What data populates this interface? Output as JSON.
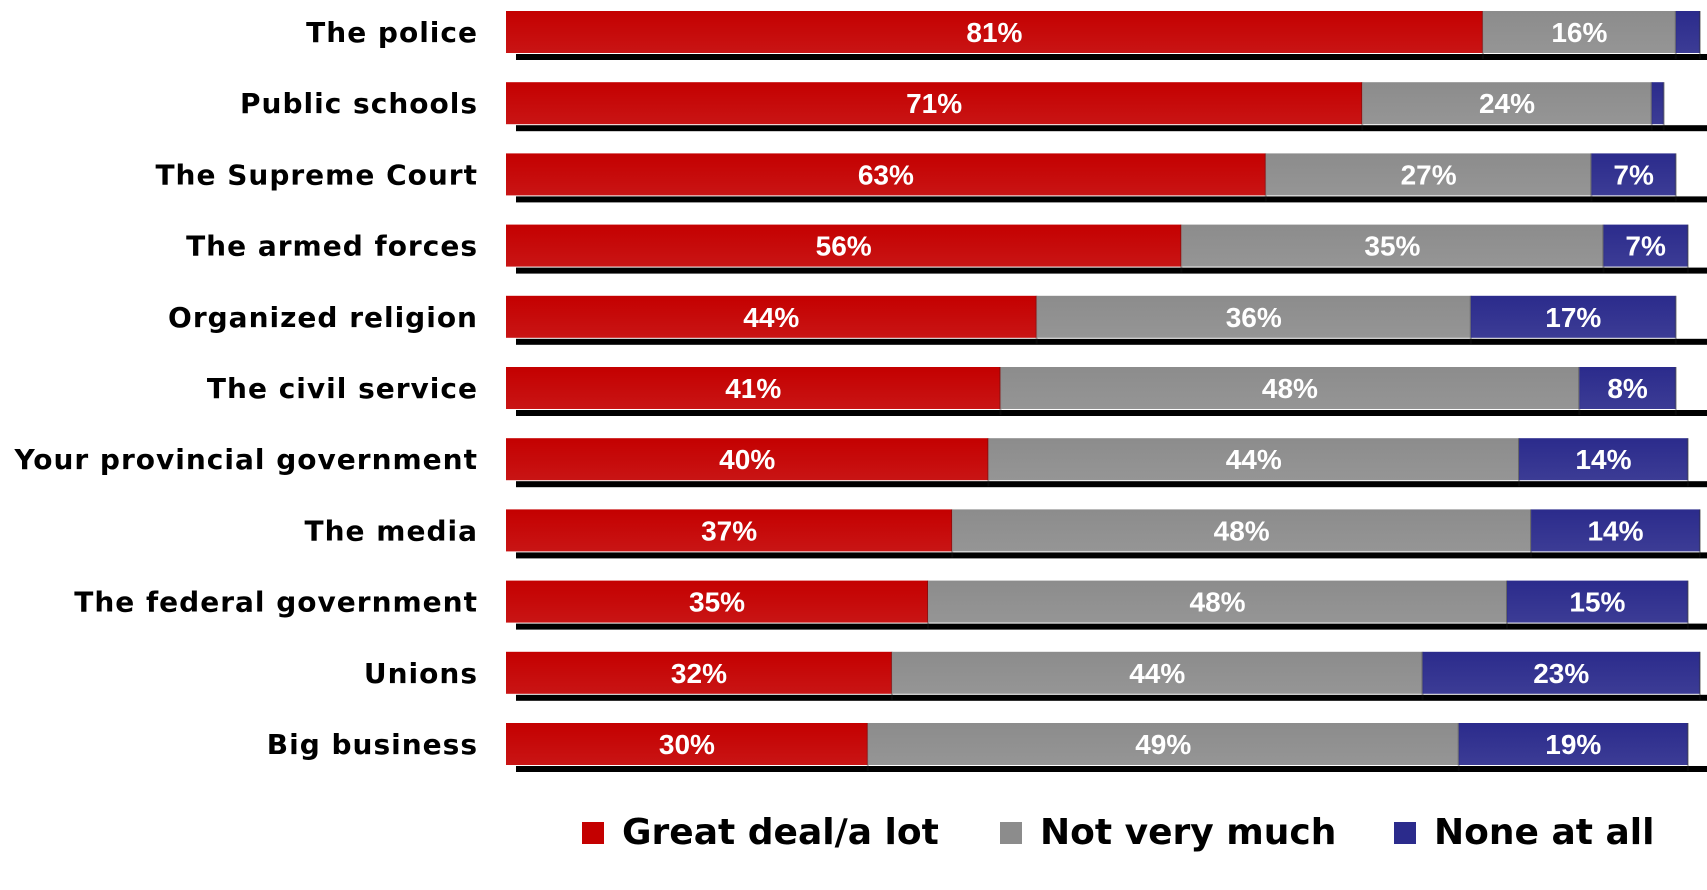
{
  "chart_data": {
    "type": "bar",
    "orientation": "horizontal",
    "stacked": true,
    "xlim": [
      0,
      100
    ],
    "grid": false,
    "legend_position": "bottom",
    "categories": [
      "The police",
      "Public schools",
      "The Supreme Court",
      "The armed forces",
      "Organized religion",
      "The civil service",
      "Your provincial government",
      "The media",
      "The federal government",
      "Unions",
      "Big business"
    ],
    "series": [
      {
        "name": "Great deal/a lot",
        "color": "#c40000",
        "values": [
          81,
          71,
          63,
          56,
          44,
          41,
          40,
          37,
          35,
          32,
          30
        ],
        "labels": [
          "81%",
          "71%",
          "63%",
          "56%",
          "44%",
          "41%",
          "40%",
          "37%",
          "35%",
          "32%",
          "30%"
        ]
      },
      {
        "name": "Not very much",
        "color": "#8c8c8c",
        "values": [
          16,
          24,
          27,
          35,
          36,
          48,
          44,
          48,
          48,
          44,
          49
        ],
        "labels": [
          "16%",
          "24%",
          "27%",
          "35%",
          "36%",
          "48%",
          "44%",
          "48%",
          "48%",
          "44%",
          "49%"
        ]
      },
      {
        "name": "None at all",
        "color": "#2b2b8c",
        "values": [
          2,
          1,
          7,
          7,
          17,
          8,
          14,
          14,
          15,
          23,
          19
        ],
        "labels": [
          "",
          "",
          "7%",
          "7%",
          "17%",
          "8%",
          "14%",
          "14%",
          "15%",
          "23%",
          "19%"
        ]
      }
    ]
  }
}
